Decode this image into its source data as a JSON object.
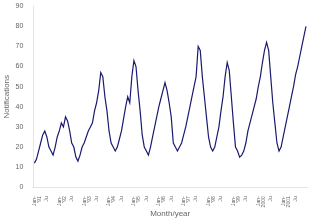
{
  "chart_data": {
    "type": "line",
    "xlabel": "Month/year",
    "ylabel": "Notifications",
    "categories": [
      "Jan-\n'91",
      null,
      null,
      null,
      null,
      null,
      "Ju",
      null,
      null,
      null,
      null,
      null,
      "Jan-\n'92",
      null,
      null,
      null,
      null,
      null,
      "Ju",
      null,
      null,
      null,
      null,
      null,
      "Jan-\n'93",
      null,
      null,
      null,
      null,
      null,
      "Ju",
      null,
      null,
      null,
      null,
      null,
      "Jan-\n'94",
      null,
      null,
      null,
      null,
      null,
      "Ju",
      null,
      null,
      null,
      null,
      null,
      "Jan-\n'95",
      null,
      null,
      null,
      null,
      null,
      "Ju",
      null,
      null,
      null,
      null,
      null,
      "Jan-\n'96",
      null,
      null,
      null,
      null,
      null,
      "Ju",
      null,
      null,
      null,
      null,
      null,
      "Jan-\n'97",
      null,
      null,
      null,
      null,
      null,
      "Ju",
      null,
      null,
      null,
      null,
      null,
      "Jan-\n'98",
      null,
      null,
      null,
      null,
      null,
      "Ju",
      null,
      null,
      null,
      null,
      null,
      "Jan-\n'99",
      null,
      null,
      null,
      null,
      null,
      "Ju",
      null,
      null,
      null,
      null,
      null,
      "Jan-\n2000",
      null,
      null,
      null,
      null,
      null,
      "Ju",
      null,
      null,
      null,
      null,
      null,
      "Jan-\n2001",
      null,
      null,
      null,
      null,
      null,
      "Ju",
      null,
      null,
      null,
      null,
      null
    ],
    "values": [
      12,
      14,
      18,
      22,
      26,
      28,
      25,
      20,
      18,
      16,
      20,
      25,
      28,
      32,
      30,
      35,
      33,
      28,
      22,
      20,
      15,
      13,
      16,
      20,
      22,
      25,
      28,
      30,
      32,
      38,
      42,
      48,
      57,
      55,
      45,
      38,
      28,
      22,
      20,
      18,
      20,
      24,
      28,
      34,
      40,
      45,
      42,
      55,
      63,
      60,
      48,
      38,
      26,
      20,
      18,
      16,
      20,
      25,
      30,
      35,
      40,
      44,
      48,
      52,
      48,
      42,
      35,
      22,
      20,
      18,
      20,
      22,
      26,
      30,
      35,
      40,
      45,
      50,
      55,
      70,
      68,
      55,
      45,
      35,
      25,
      20,
      18,
      20,
      25,
      30,
      38,
      45,
      55,
      62,
      58,
      45,
      32,
      20,
      18,
      15,
      16,
      18,
      22,
      28,
      32,
      36,
      40,
      44,
      50,
      55,
      62,
      68,
      72,
      68,
      55,
      42,
      32,
      22,
      18,
      20,
      25,
      30,
      35,
      40,
      45,
      50,
      56,
      60,
      65,
      70,
      75,
      80
    ],
    "color": "#1a1a6e",
    "ylim": [
      0,
      90
    ],
    "yticks": [
      0,
      10,
      20,
      30,
      40,
      50,
      60,
      70,
      80,
      90
    ],
    "grid": false
  }
}
